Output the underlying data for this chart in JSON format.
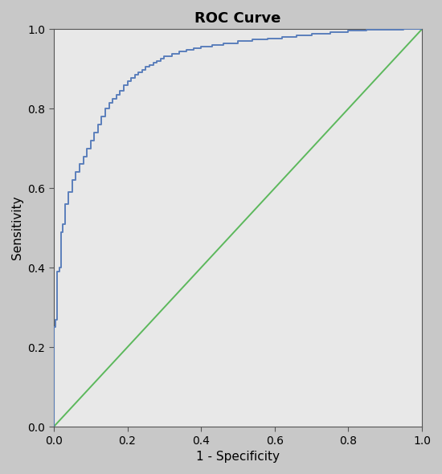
{
  "title": "ROC Curve",
  "xlabel": "1 - Specificity",
  "ylabel": "Sensitivity",
  "xlim": [
    0.0,
    1.0
  ],
  "ylim": [
    0.0,
    1.0
  ],
  "xticks": [
    0.0,
    0.2,
    0.4,
    0.6,
    0.8,
    1.0
  ],
  "yticks": [
    0.0,
    0.2,
    0.4,
    0.6,
    0.8,
    1.0
  ],
  "roc_color": "#5b7fbb",
  "diagonal_color": "#5cb85c",
  "background_color": "#e8e8e8",
  "outer_background": "#c8c8c8",
  "title_fontsize": 13,
  "label_fontsize": 11,
  "tick_fontsize": 10,
  "roc_linewidth": 1.4,
  "diagonal_linewidth": 1.4,
  "waypoints_x": [
    0.0,
    0.0,
    0.0,
    0.005,
    0.005,
    0.01,
    0.01,
    0.015,
    0.015,
    0.02,
    0.02,
    0.025,
    0.025,
    0.03,
    0.03,
    0.04,
    0.04,
    0.05,
    0.05,
    0.06,
    0.06,
    0.07,
    0.07,
    0.08,
    0.08,
    0.09,
    0.09,
    0.1,
    0.1,
    0.11,
    0.11,
    0.12,
    0.12,
    0.13,
    0.13,
    0.14,
    0.14,
    0.15,
    0.15,
    0.16,
    0.16,
    0.17,
    0.17,
    0.18,
    0.18,
    0.19,
    0.19,
    0.2,
    0.2,
    0.21,
    0.21,
    0.22,
    0.22,
    0.23,
    0.23,
    0.24,
    0.24,
    0.25,
    0.25,
    0.26,
    0.26,
    0.27,
    0.27,
    0.28,
    0.28,
    0.29,
    0.29,
    0.3,
    0.3,
    0.32,
    0.32,
    0.34,
    0.34,
    0.36,
    0.36,
    0.38,
    0.38,
    0.4,
    0.4,
    0.43,
    0.43,
    0.46,
    0.46,
    0.5,
    0.5,
    0.54,
    0.54,
    0.58,
    0.58,
    0.62,
    0.62,
    0.66,
    0.66,
    0.7,
    0.7,
    0.75,
    0.75,
    0.8,
    0.8,
    0.85,
    0.85,
    0.9,
    0.9,
    0.95,
    0.95,
    1.0
  ],
  "waypoints_y": [
    0.0,
    0.13,
    0.25,
    0.25,
    0.27,
    0.27,
    0.39,
    0.39,
    0.4,
    0.4,
    0.49,
    0.49,
    0.51,
    0.51,
    0.56,
    0.56,
    0.59,
    0.59,
    0.62,
    0.62,
    0.64,
    0.64,
    0.66,
    0.66,
    0.68,
    0.68,
    0.7,
    0.7,
    0.72,
    0.72,
    0.74,
    0.74,
    0.76,
    0.76,
    0.78,
    0.78,
    0.8,
    0.8,
    0.815,
    0.815,
    0.825,
    0.825,
    0.835,
    0.835,
    0.845,
    0.845,
    0.86,
    0.86,
    0.87,
    0.87,
    0.878,
    0.878,
    0.885,
    0.885,
    0.892,
    0.892,
    0.898,
    0.898,
    0.905,
    0.905,
    0.91,
    0.91,
    0.915,
    0.915,
    0.92,
    0.92,
    0.925,
    0.925,
    0.932,
    0.932,
    0.938,
    0.938,
    0.943,
    0.943,
    0.947,
    0.947,
    0.951,
    0.951,
    0.955,
    0.955,
    0.96,
    0.96,
    0.965,
    0.965,
    0.97,
    0.97,
    0.974,
    0.974,
    0.977,
    0.977,
    0.98,
    0.98,
    0.984,
    0.984,
    0.988,
    0.988,
    0.992,
    0.992,
    0.996,
    0.996,
    0.998,
    0.998,
    0.999,
    0.999,
    1.0,
    1.0
  ]
}
